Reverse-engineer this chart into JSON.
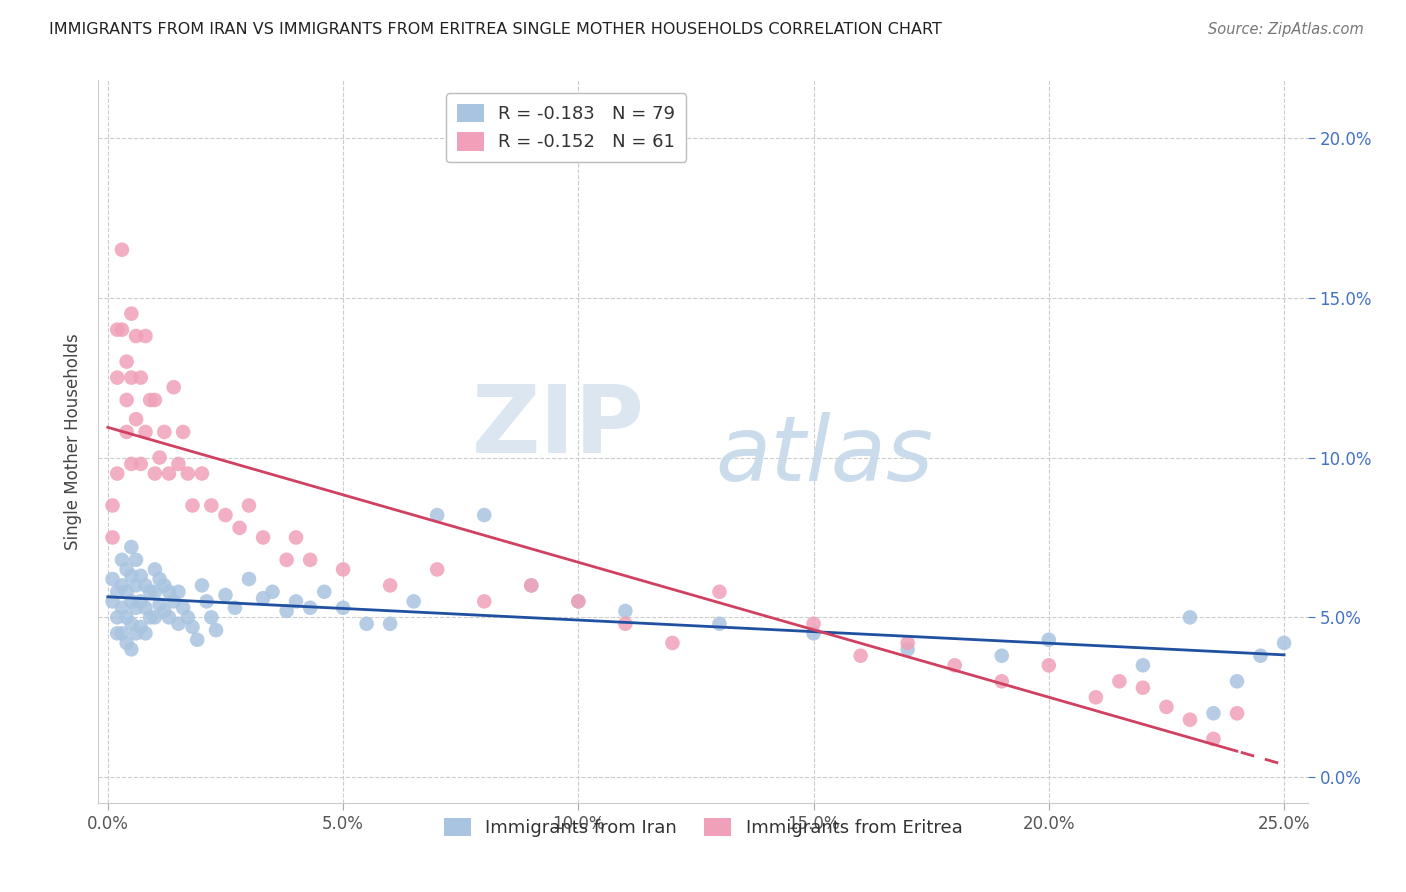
{
  "title": "IMMIGRANTS FROM IRAN VS IMMIGRANTS FROM ERITREA SINGLE MOTHER HOUSEHOLDS CORRELATION CHART",
  "source": "Source: ZipAtlas.com",
  "ylabel": "Single Mother Households",
  "xlabel_ticks": [
    "0.0%",
    "5.0%",
    "10.0%",
    "15.0%",
    "20.0%",
    "25.0%"
  ],
  "xlabel_tick_vals": [
    0.0,
    0.05,
    0.1,
    0.15,
    0.2,
    0.25
  ],
  "ylabel_ticks": [
    "0.0%",
    "5.0%",
    "10.0%",
    "15.0%",
    "20.0%"
  ],
  "ylabel_tick_vals": [
    0.0,
    0.05,
    0.1,
    0.15,
    0.2
  ],
  "xlim": [
    -0.002,
    0.255
  ],
  "ylim": [
    -0.008,
    0.218
  ],
  "iran_R": "-0.183",
  "iran_N": "79",
  "eritrea_R": "-0.152",
  "eritrea_N": "61",
  "iran_color": "#a8c4e0",
  "eritrea_color": "#f0a0b8",
  "iran_line_color": "#2050a0",
  "eritrea_line_color": "#d04060",
  "background_color": "#ffffff",
  "grid_color": "#cccccc",
  "right_axis_color": "#4472c4",
  "iran_scatter_x": [
    0.001,
    0.001,
    0.002,
    0.002,
    0.002,
    0.003,
    0.003,
    0.003,
    0.003,
    0.004,
    0.004,
    0.004,
    0.004,
    0.005,
    0.005,
    0.005,
    0.005,
    0.005,
    0.006,
    0.006,
    0.006,
    0.006,
    0.007,
    0.007,
    0.007,
    0.008,
    0.008,
    0.008,
    0.009,
    0.009,
    0.01,
    0.01,
    0.01,
    0.011,
    0.011,
    0.012,
    0.012,
    0.013,
    0.013,
    0.014,
    0.015,
    0.015,
    0.016,
    0.017,
    0.018,
    0.019,
    0.02,
    0.021,
    0.022,
    0.023,
    0.025,
    0.027,
    0.03,
    0.033,
    0.035,
    0.038,
    0.04,
    0.043,
    0.046,
    0.05,
    0.055,
    0.06,
    0.065,
    0.07,
    0.08,
    0.09,
    0.1,
    0.11,
    0.13,
    0.15,
    0.17,
    0.19,
    0.2,
    0.22,
    0.23,
    0.235,
    0.24,
    0.245,
    0.25
  ],
  "iran_scatter_y": [
    0.062,
    0.055,
    0.058,
    0.05,
    0.045,
    0.068,
    0.06,
    0.053,
    0.045,
    0.065,
    0.058,
    0.05,
    0.042,
    0.072,
    0.063,
    0.055,
    0.048,
    0.04,
    0.068,
    0.06,
    0.053,
    0.045,
    0.063,
    0.055,
    0.047,
    0.06,
    0.053,
    0.045,
    0.058,
    0.05,
    0.065,
    0.058,
    0.05,
    0.062,
    0.054,
    0.06,
    0.052,
    0.058,
    0.05,
    0.055,
    0.058,
    0.048,
    0.053,
    0.05,
    0.047,
    0.043,
    0.06,
    0.055,
    0.05,
    0.046,
    0.057,
    0.053,
    0.062,
    0.056,
    0.058,
    0.052,
    0.055,
    0.053,
    0.058,
    0.053,
    0.048,
    0.048,
    0.055,
    0.082,
    0.082,
    0.06,
    0.055,
    0.052,
    0.048,
    0.045,
    0.04,
    0.038,
    0.043,
    0.035,
    0.05,
    0.02,
    0.03,
    0.038,
    0.042
  ],
  "eritrea_scatter_x": [
    0.001,
    0.001,
    0.002,
    0.002,
    0.002,
    0.003,
    0.003,
    0.004,
    0.004,
    0.004,
    0.005,
    0.005,
    0.005,
    0.006,
    0.006,
    0.007,
    0.007,
    0.008,
    0.008,
    0.009,
    0.01,
    0.01,
    0.011,
    0.012,
    0.013,
    0.014,
    0.015,
    0.016,
    0.017,
    0.018,
    0.02,
    0.022,
    0.025,
    0.028,
    0.03,
    0.033,
    0.038,
    0.04,
    0.043,
    0.05,
    0.06,
    0.07,
    0.08,
    0.09,
    0.1,
    0.11,
    0.12,
    0.13,
    0.15,
    0.16,
    0.17,
    0.18,
    0.19,
    0.2,
    0.21,
    0.215,
    0.22,
    0.225,
    0.23,
    0.235,
    0.24
  ],
  "eritrea_scatter_y": [
    0.085,
    0.075,
    0.14,
    0.125,
    0.095,
    0.165,
    0.14,
    0.13,
    0.118,
    0.108,
    0.145,
    0.125,
    0.098,
    0.138,
    0.112,
    0.125,
    0.098,
    0.138,
    0.108,
    0.118,
    0.118,
    0.095,
    0.1,
    0.108,
    0.095,
    0.122,
    0.098,
    0.108,
    0.095,
    0.085,
    0.095,
    0.085,
    0.082,
    0.078,
    0.085,
    0.075,
    0.068,
    0.075,
    0.068,
    0.065,
    0.06,
    0.065,
    0.055,
    0.06,
    0.055,
    0.048,
    0.042,
    0.058,
    0.048,
    0.038,
    0.042,
    0.035,
    0.03,
    0.035,
    0.025,
    0.03,
    0.028,
    0.022,
    0.018,
    0.012,
    0.02
  ]
}
